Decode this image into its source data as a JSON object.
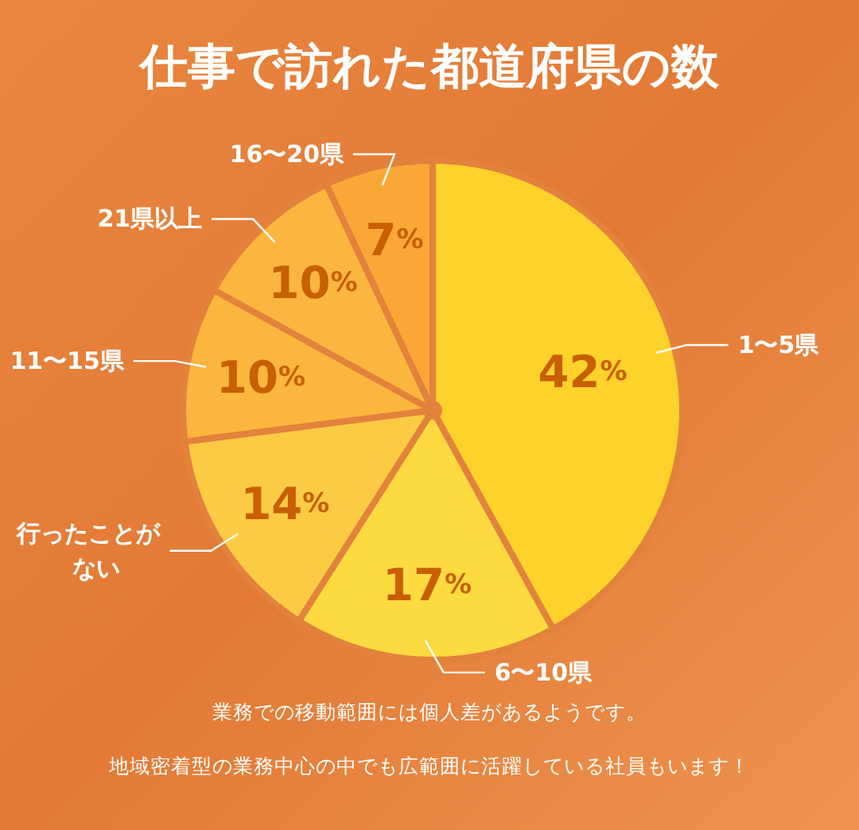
{
  "chart_data": {
    "type": "pie",
    "title": "仕事で訪れた都道府県の数",
    "categories": [
      "1〜5県",
      "6〜10県",
      "行ったことがない",
      "11〜15県",
      "21県以上",
      "16〜20県"
    ],
    "values": [
      42,
      17,
      14,
      10,
      10,
      7
    ],
    "colors": [
      "#fdd22b",
      "#fdda40",
      "#fccb44",
      "#fbb63e",
      "#fbb640",
      "#f9a838"
    ],
    "value_labels": [
      "42%",
      "17%",
      "14%",
      "10%",
      "10%",
      "7%"
    ],
    "annotations": [
      "業務での移動範囲には個人差があるようです。",
      "地域密着型の業務中心の中でも広範囲に活躍している社員もいます！"
    ]
  }
}
